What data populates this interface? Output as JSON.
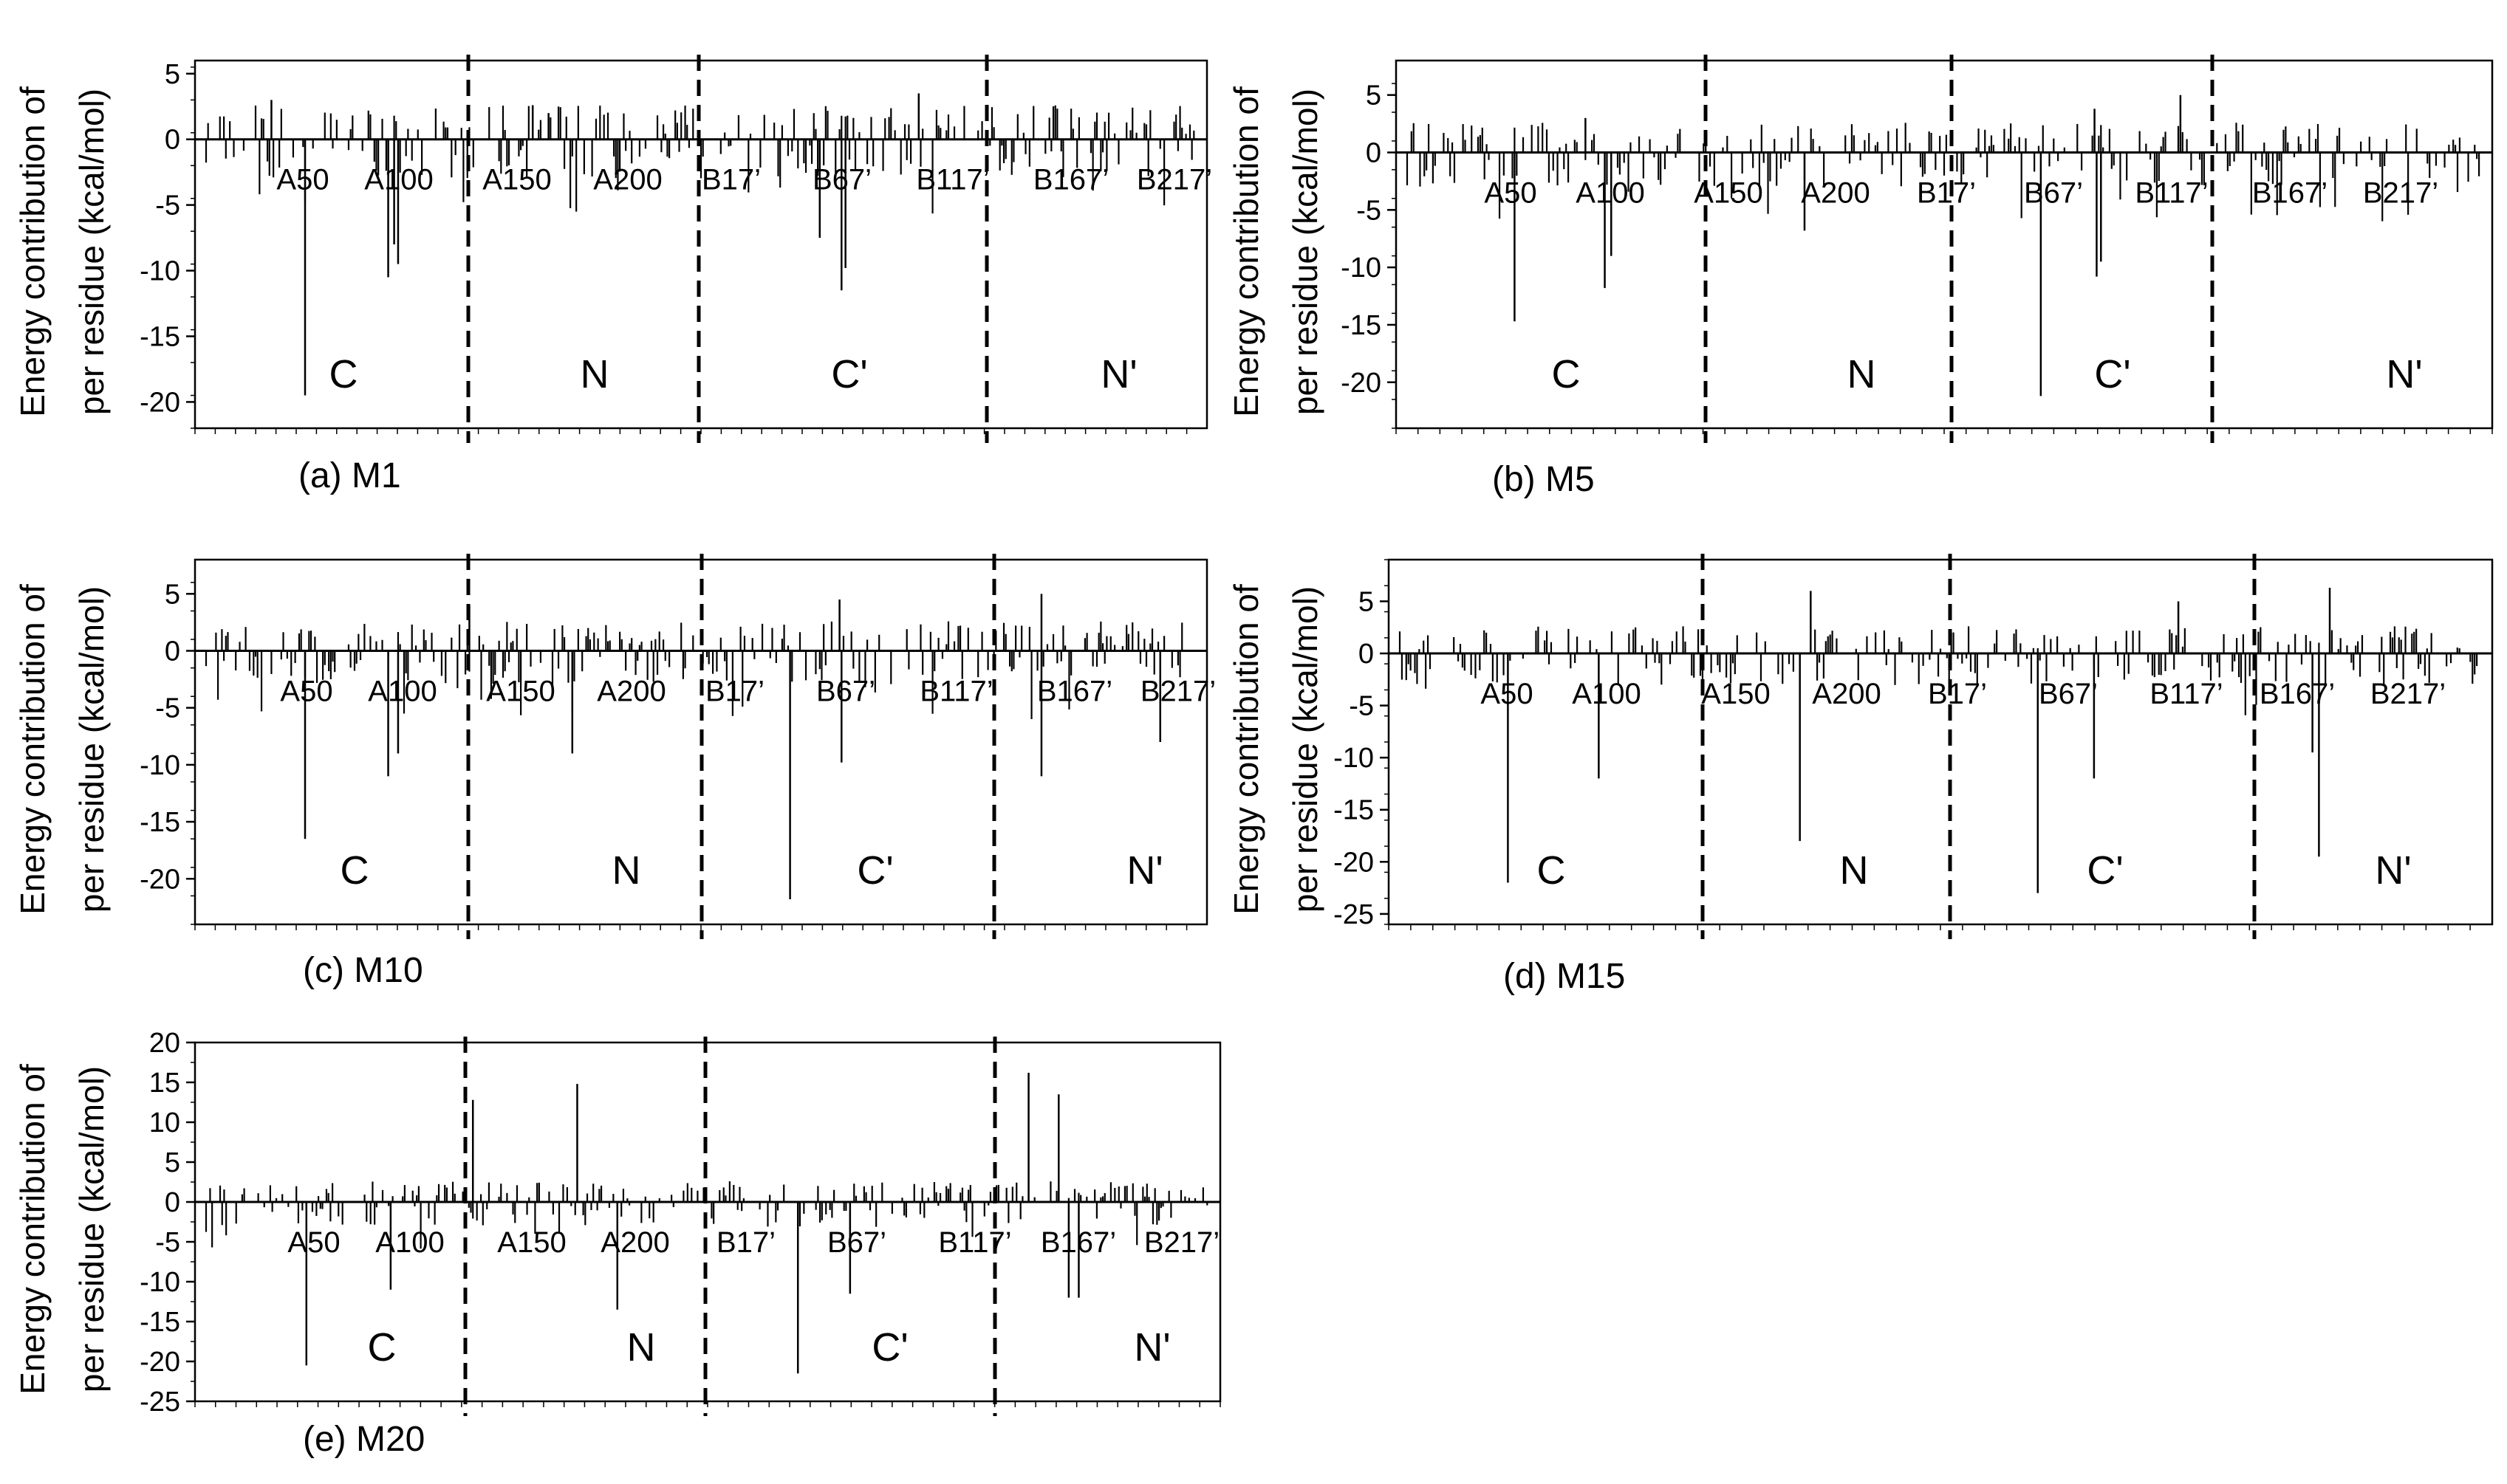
{
  "chart_data": [
    {
      "type": "bar",
      "caption": "(a) M1",
      "ylabel_line1": "Energy contribution of",
      "ylabel_line2": "per residue (kcal/mol)",
      "ylim": [
        -22,
        6
      ],
      "yticks": [
        5,
        0,
        -5,
        -10,
        -15,
        -20
      ],
      "residue_labels": [
        "A50",
        "A100",
        "A150",
        "A200",
        "B17’",
        "B67’",
        "B117’",
        "B167’",
        "B217’"
      ],
      "regions": [
        "C",
        "N",
        "C'",
        "N'"
      ],
      "series": [
        {
          "values": [
            {
              "residue": "A50",
              "energy": -19.5
            },
            {
              "residue": "A92",
              "energy": -10.5
            },
            {
              "residue": "A95",
              "energy": -8
            },
            {
              "residue": "A97",
              "energy": -9.5
            },
            {
              "residue": "B60’",
              "energy": -7.5
            },
            {
              "residue": "B71’",
              "energy": -11.5
            },
            {
              "residue": "B73’",
              "energy": -9.8
            },
            {
              "residue": "B110’",
              "energy": 3.5
            },
            {
              "residue": "A33",
              "energy": 3
            },
            {
              "residue": "A165",
              "energy": 2.6
            },
            {
              "residue": "A173",
              "energy": 2
            }
          ]
        }
      ]
    },
    {
      "type": "bar",
      "caption": "(b) M5",
      "ylabel_line1": "Energy contribution of",
      "ylabel_line2": "per residue (kcal/mol)",
      "ylim": [
        -24,
        8
      ],
      "yticks": [
        5,
        0,
        -5,
        -10,
        -15,
        -20
      ],
      "residue_labels": [
        "A50",
        "A100",
        "A150",
        "A200",
        "B17’",
        "B67’",
        "B117’",
        "B167’",
        "B217’"
      ],
      "regions": [
        "C",
        "N",
        "C'",
        "N'"
      ],
      "series": [
        {
          "values": [
            {
              "residue": "A50",
              "energy": -14.7
            },
            {
              "residue": "A92",
              "energy": -11.8
            },
            {
              "residue": "A95",
              "energy": -9
            },
            {
              "residue": "A185",
              "energy": -6.8
            },
            {
              "residue": "B45’",
              "energy": -21.2
            },
            {
              "residue": "B71’",
              "energy": -10.8
            },
            {
              "residue": "B73’",
              "energy": -9.5
            },
            {
              "residue": "B110’",
              "energy": 5
            },
            {
              "residue": "A83",
              "energy": 3
            },
            {
              "residue": "B70’",
              "energy": 3.8
            }
          ]
        }
      ]
    },
    {
      "type": "bar",
      "caption": "(c) M10",
      "ylabel_line1": "Energy contribution of",
      "ylabel_line2": "per residue (kcal/mol)",
      "ylim": [
        -24,
        8
      ],
      "yticks": [
        5,
        0,
        -5,
        -10,
        -15,
        -20
      ],
      "residue_labels": [
        "A50",
        "A100",
        "A150",
        "A200",
        "B17’",
        "B67’",
        "B117’",
        "B167’",
        "B217’"
      ],
      "regions": [
        "C",
        "N",
        "C'",
        "N'"
      ],
      "series": [
        {
          "values": [
            {
              "residue": "A50",
              "energy": -16.5
            },
            {
              "residue": "A92",
              "energy": -11
            },
            {
              "residue": "A97",
              "energy": -9
            },
            {
              "residue": "A185",
              "energy": -9
            },
            {
              "residue": "B45’",
              "energy": -21.8
            },
            {
              "residue": "B71’",
              "energy": -9.8
            },
            {
              "residue": "B172’",
              "energy": -11
            },
            {
              "residue": "B232’",
              "energy": -8
            },
            {
              "residue": "A133",
              "energy": 4
            },
            {
              "residue": "B70’",
              "energy": 4.5
            },
            {
              "residue": "B172’",
              "energy": 5
            }
          ]
        }
      ]
    },
    {
      "type": "bar",
      "caption": "(d) M15",
      "ylabel_line1": "Energy contribution of",
      "ylabel_line2": "per residue (kcal/mol)",
      "ylim": [
        -26,
        9
      ],
      "yticks": [
        5,
        0,
        -5,
        -10,
        -15,
        -20,
        -25
      ],
      "residue_labels": [
        "A50",
        "A100",
        "A150",
        "A200",
        "B17’",
        "B67’",
        "B117’",
        "B167’",
        "B217’"
      ],
      "regions": [
        "C",
        "N",
        "C'",
        "N'"
      ],
      "series": [
        {
          "values": [
            {
              "residue": "A50",
              "energy": -22
            },
            {
              "residue": "A92",
              "energy": -12
            },
            {
              "residue": "A185",
              "energy": -18
            },
            {
              "residue": "B45’",
              "energy": -23
            },
            {
              "residue": "B71’",
              "energy": -12
            },
            {
              "residue": "B175’",
              "energy": -19.5
            },
            {
              "residue": "B172’",
              "energy": -9.5
            },
            {
              "residue": "A190",
              "energy": 6
            },
            {
              "residue": "B180’",
              "energy": 6.3
            },
            {
              "residue": "B110’",
              "energy": 5
            }
          ]
        }
      ]
    },
    {
      "type": "bar",
      "caption": "(e) M20",
      "ylabel_line1": "Energy contribution of",
      "ylabel_line2": "per residue (kcal/mol)",
      "ylim": [
        -25,
        20
      ],
      "yticks": [
        20,
        15,
        10,
        5,
        0,
        -5,
        -10,
        -15,
        -20,
        -25
      ],
      "residue_labels": [
        "A50",
        "A100",
        "A150",
        "A200",
        "B17’",
        "B67’",
        "B117’",
        "B167’",
        "B217’"
      ],
      "regions": [
        "C",
        "N",
        "C'",
        "N'"
      ],
      "series": [
        {
          "values": [
            {
              "residue": "A50",
              "energy": -20.5
            },
            {
              "residue": "A92",
              "energy": -11
            },
            {
              "residue": "A133",
              "energy": 12.8
            },
            {
              "residue": "A185",
              "energy": 14.8
            },
            {
              "residue": "A205",
              "energy": -13.5
            },
            {
              "residue": "B45’",
              "energy": -21.5
            },
            {
              "residue": "B71’",
              "energy": -11.5
            },
            {
              "residue": "B160’",
              "energy": 16.2
            },
            {
              "residue": "B175’",
              "energy": 13.5
            },
            {
              "residue": "B180’",
              "energy": -12
            },
            {
              "residue": "B185’",
              "energy": -12
            }
          ]
        }
      ]
    }
  ]
}
